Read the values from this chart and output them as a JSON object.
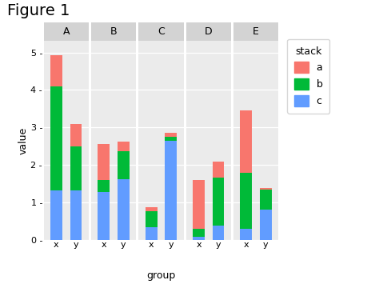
{
  "title": "Figure 1",
  "xlabel": "group",
  "ylabel": "value",
  "legend_title": "stack",
  "facets": [
    "A",
    "B",
    "C",
    "D",
    "E"
  ],
  "groups": [
    "x",
    "y"
  ],
  "colors": {
    "a": "#F8766D",
    "b": "#00BA38",
    "c": "#619CFF"
  },
  "data": {
    "A": {
      "x": {
        "c": 1.32,
        "b": 2.78,
        "a": 0.82
      },
      "y": {
        "c": 1.32,
        "b": 1.18,
        "a": 0.6
      }
    },
    "B": {
      "x": {
        "c": 1.28,
        "b": 0.32,
        "a": 0.96
      },
      "y": {
        "c": 1.62,
        "b": 0.75,
        "a": 0.25
      }
    },
    "C": {
      "x": {
        "c": 0.35,
        "b": 0.42,
        "a": 0.1
      },
      "y": {
        "c": 2.65,
        "b": 0.1,
        "a": 0.1
      }
    },
    "D": {
      "x": {
        "c": 0.08,
        "b": 0.22,
        "a": 1.3
      },
      "y": {
        "c": 0.38,
        "b": 1.28,
        "a": 0.44
      }
    },
    "E": {
      "x": {
        "c": 0.3,
        "b": 1.5,
        "a": 1.65
      },
      "y": {
        "c": 0.82,
        "b": 0.52,
        "a": 0.05
      }
    }
  },
  "ylim": [
    0,
    5.3
  ],
  "yticks": [
    0,
    1,
    2,
    3,
    4,
    5
  ],
  "panel_bg": "#EBEBEB",
  "facet_header_bg": "#D3D3D3",
  "figure_bg": "#FFFFFF",
  "grid_color": "#FFFFFF",
  "bar_width": 0.6,
  "title_fontsize": 14,
  "axis_fontsize": 8,
  "label_fontsize": 9
}
